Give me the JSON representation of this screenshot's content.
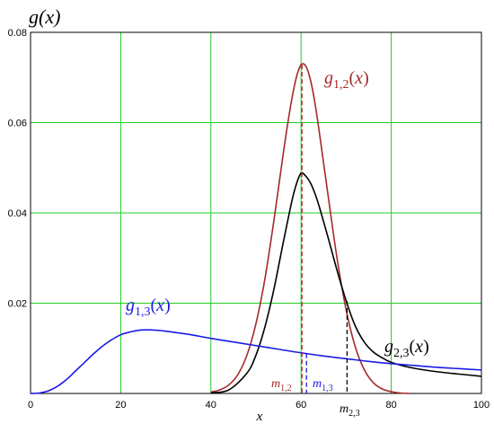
{
  "chart_data": {
    "type": "line",
    "title": "",
    "xlabel": "x",
    "ylabel": "g(x)",
    "xlim": [
      0,
      100
    ],
    "ylim": [
      0,
      0.08
    ],
    "x_ticks": [
      0,
      20,
      40,
      60,
      80,
      100
    ],
    "y_ticks": [
      0.02,
      0.04,
      0.06,
      0.08
    ],
    "x_tick_labels": [
      "0",
      "20",
      "40",
      "60",
      "80",
      "100"
    ],
    "y_tick_labels": [
      "0.02",
      "0.04",
      "0.06",
      "0.08"
    ],
    "grid": true,
    "colors": {
      "grid": "#22cc22",
      "g12": "#a52a2a",
      "g13": "#1a1ae6",
      "g23": "#000000"
    },
    "series": [
      {
        "name": "g1,2(x)",
        "label_main": "g",
        "label_sub": "1,2",
        "label_arg": "(x)",
        "color": "#a52a2a",
        "x": [
          40,
          42,
          44,
          46,
          48,
          50,
          52,
          54,
          56,
          57,
          58,
          59,
          60,
          61,
          62,
          63,
          64,
          66,
          68,
          70,
          72,
          74,
          76,
          78,
          80,
          82,
          84
        ],
        "y": [
          0.0003,
          0.0008,
          0.0019,
          0.0042,
          0.0085,
          0.0155,
          0.0255,
          0.0385,
          0.0528,
          0.0595,
          0.0655,
          0.0702,
          0.0728,
          0.0726,
          0.0698,
          0.0648,
          0.0582,
          0.0438,
          0.0298,
          0.0185,
          0.0104,
          0.0053,
          0.0024,
          0.001,
          0.0004,
          0.0001,
          0.0
        ]
      },
      {
        "name": "g2,3(x)",
        "label_main": "g",
        "label_sub": "2,3",
        "label_arg": "(x)",
        "color": "#000000",
        "x": [
          40,
          44,
          48,
          50,
          52,
          54,
          56,
          58,
          59,
          60,
          61,
          62,
          63,
          64,
          66,
          68,
          70,
          72,
          74,
          76,
          78,
          80,
          84,
          88,
          92,
          96,
          100
        ],
        "y": [
          0.0001,
          0.0008,
          0.0045,
          0.0085,
          0.0148,
          0.0232,
          0.0332,
          0.0428,
          0.0465,
          0.0488,
          0.0482,
          0.0468,
          0.0445,
          0.0415,
          0.0345,
          0.0272,
          0.0205,
          0.015,
          0.0114,
          0.0092,
          0.0079,
          0.0069,
          0.0058,
          0.0051,
          0.0046,
          0.0042,
          0.0038
        ]
      },
      {
        "name": "g1,3(x)",
        "label_main": "g",
        "label_sub": "1,3",
        "label_arg": "(x)",
        "color": "#1a1ae6",
        "x": [
          0,
          2,
          4,
          6,
          8,
          10,
          12,
          14,
          16,
          18,
          20,
          22,
          24,
          26,
          28,
          30,
          35,
          40,
          45,
          50,
          55,
          60,
          65,
          70,
          75,
          80,
          85,
          90,
          95,
          100
        ],
        "y": [
          0.0,
          0.0001,
          0.0006,
          0.0016,
          0.0031,
          0.005,
          0.0069,
          0.0088,
          0.0105,
          0.0119,
          0.013,
          0.0136,
          0.014,
          0.0141,
          0.014,
          0.0138,
          0.0131,
          0.0122,
          0.0114,
          0.0106,
          0.0098,
          0.009,
          0.0083,
          0.0077,
          0.0071,
          0.0066,
          0.0062,
          0.0058,
          0.0055,
          0.0052
        ]
      }
    ],
    "markers": [
      {
        "name": "m1,2",
        "label_main": "m",
        "label_sub": "1,2",
        "x": 60.2,
        "color": "#a52a2a",
        "series": "g1,2(x)",
        "y_top": 0.0728
      },
      {
        "name": "m1,3",
        "label_main": "m",
        "label_sub": "1,3",
        "x": 61.2,
        "color": "#1a1ae6",
        "series": "g1,3(x)",
        "y_top": 0.0088
      },
      {
        "name": "m2,3",
        "label_main": "m",
        "label_sub": "2,3",
        "x": 70.2,
        "color": "#000000",
        "series": "g2,3(x)",
        "y_top": 0.0205
      }
    ]
  }
}
